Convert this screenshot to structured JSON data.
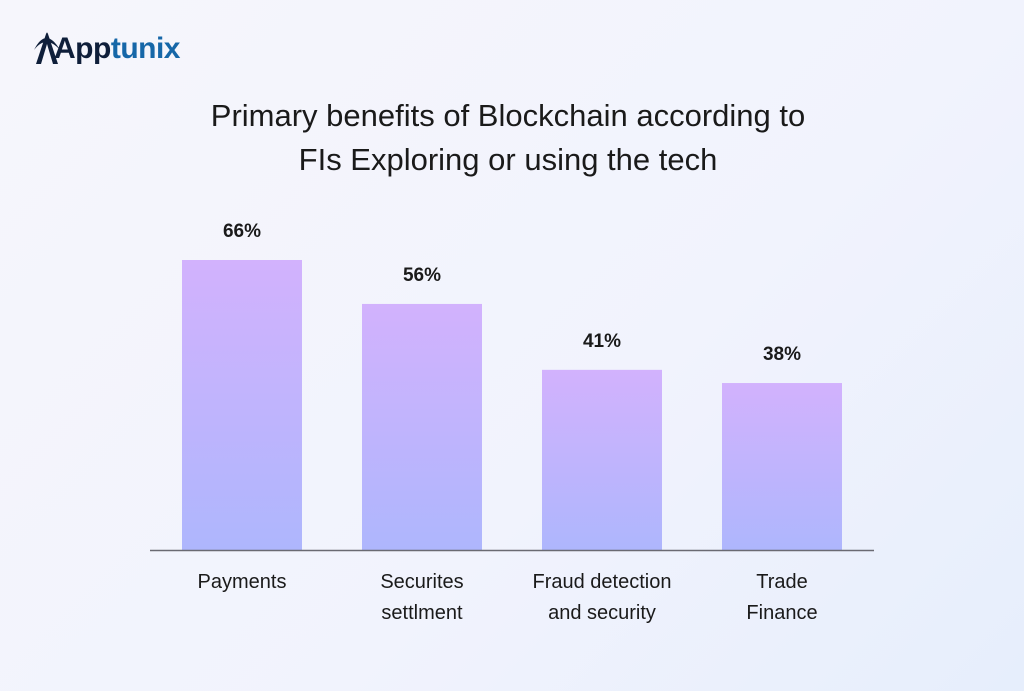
{
  "logo": {
    "text": "Apptunix",
    "part1": "App",
    "part2": "tunix",
    "colors": {
      "dark": "#0f1f3a",
      "blue": "#1667a8"
    }
  },
  "chart_data": {
    "type": "bar",
    "title": "Primary benefits of Blockchain according to FIs Exploring or using the tech",
    "title_line1": "Primary benefits of Blockchain according to",
    "title_line2": "FIs Exploring or using the tech",
    "categories": [
      [
        "Payments"
      ],
      [
        "Securites",
        "settlment"
      ],
      [
        "Fraud detection",
        "and security"
      ],
      [
        "Trade",
        "Finance"
      ]
    ],
    "values": [
      66,
      56,
      41,
      38
    ],
    "data_labels": [
      "66%",
      "56%",
      "41%",
      "38%"
    ],
    "unit": "%",
    "ylim": [
      0,
      66
    ],
    "grid": false,
    "bar_gradient": {
      "top": "#d2b2fd",
      "bottom": "#aeb6fd"
    }
  }
}
